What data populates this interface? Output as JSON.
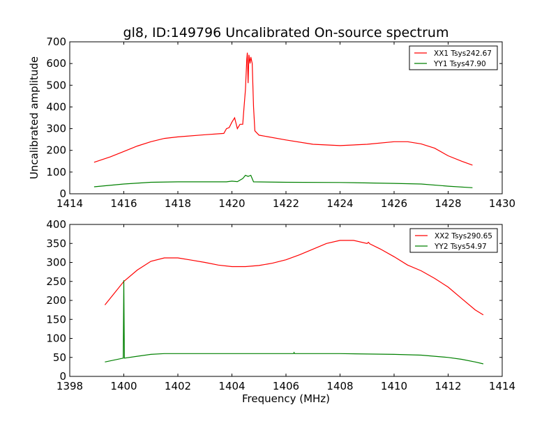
{
  "chart_data": [
    {
      "type": "line",
      "title": "gl8, ID:149796 Uncalibrated On-source spectrum",
      "xlabel": "",
      "ylabel": "Uncalibrated amplitude",
      "xlim": [
        1414,
        1430
      ],
      "ylim": [
        0,
        700
      ],
      "xticks": [
        1414,
        1416,
        1418,
        1420,
        1422,
        1424,
        1426,
        1428,
        1430
      ],
      "yticks": [
        0,
        100,
        200,
        300,
        400,
        500,
        600,
        700
      ],
      "grid": false,
      "legend_placement": "top-right",
      "series": [
        {
          "name": "XX1 Tsys242.67",
          "color": "#ff0000",
          "x": [
            1414.9,
            1415.5,
            1416,
            1416.5,
            1417,
            1417.5,
            1418,
            1419,
            1419.7,
            1419.8,
            1419.9,
            1420.0,
            1420.1,
            1420.2,
            1420.3,
            1420.4,
            1420.45,
            1420.5,
            1420.55,
            1420.57,
            1420.6,
            1420.63,
            1420.67,
            1420.7,
            1420.75,
            1420.8,
            1420.85,
            1421,
            1422,
            1423,
            1424,
            1425,
            1426,
            1426.5,
            1427,
            1427.5,
            1428,
            1428.5,
            1428.9
          ],
          "y": [
            145,
            170,
            195,
            220,
            240,
            255,
            262,
            272,
            278,
            300,
            305,
            330,
            350,
            300,
            320,
            320,
            400,
            480,
            620,
            650,
            510,
            640,
            600,
            630,
            600,
            400,
            290,
            270,
            248,
            228,
            222,
            228,
            240,
            240,
            230,
            210,
            175,
            150,
            132
          ]
        },
        {
          "name": "YY1 Tsys47.90",
          "color": "#008000",
          "x": [
            1414.9,
            1416,
            1417,
            1418,
            1419,
            1419.8,
            1420,
            1420.2,
            1420.4,
            1420.5,
            1420.6,
            1420.7,
            1420.8,
            1422,
            1424,
            1426,
            1427,
            1428,
            1428.9
          ],
          "y": [
            32,
            45,
            53,
            55,
            55,
            55,
            58,
            56,
            70,
            85,
            80,
            85,
            55,
            53,
            52,
            48,
            45,
            35,
            28
          ]
        }
      ]
    },
    {
      "type": "line",
      "title": "",
      "xlabel": "Frequency (MHz)",
      "ylabel": "",
      "xlim": [
        1398,
        1414
      ],
      "ylim": [
        0,
        400
      ],
      "xticks": [
        1398,
        1400,
        1402,
        1404,
        1406,
        1408,
        1410,
        1412,
        1414
      ],
      "yticks": [
        0,
        50,
        100,
        150,
        200,
        250,
        300,
        350,
        400
      ],
      "grid": false,
      "legend_placement": "top-right",
      "series": [
        {
          "name": "XX2 Tsys290.65",
          "color": "#ff0000",
          "x": [
            1399.3,
            1400,
            1400.5,
            1401,
            1401.5,
            1402,
            1402.5,
            1403,
            1403.5,
            1404,
            1404.5,
            1405,
            1405.5,
            1406,
            1406.5,
            1407,
            1407.5,
            1408,
            1408.5,
            1409,
            1409.05,
            1409.1,
            1409.5,
            1410,
            1410.5,
            1411,
            1411.5,
            1412,
            1412.5,
            1413,
            1413.3
          ],
          "y": [
            188,
            250,
            280,
            303,
            312,
            312,
            306,
            300,
            293,
            289,
            289,
            292,
            298,
            307,
            320,
            335,
            350,
            358,
            358,
            350,
            353,
            349,
            335,
            315,
            293,
            278,
            258,
            235,
            205,
            175,
            162
          ]
        },
        {
          "name": "YY2 Tsys54.97",
          "color": "#008000",
          "x": [
            1399.3,
            1399.98,
            1400.0,
            1400.02,
            1400.5,
            1401,
            1401.5,
            1402,
            1406.28,
            1406.3,
            1406.32,
            1408,
            1410,
            1411,
            1412,
            1412.5,
            1413,
            1413.3
          ],
          "y": [
            38,
            48,
            253,
            48,
            53,
            58,
            60,
            60,
            60,
            63,
            60,
            60,
            58,
            56,
            50,
            45,
            38,
            33
          ]
        }
      ]
    }
  ]
}
